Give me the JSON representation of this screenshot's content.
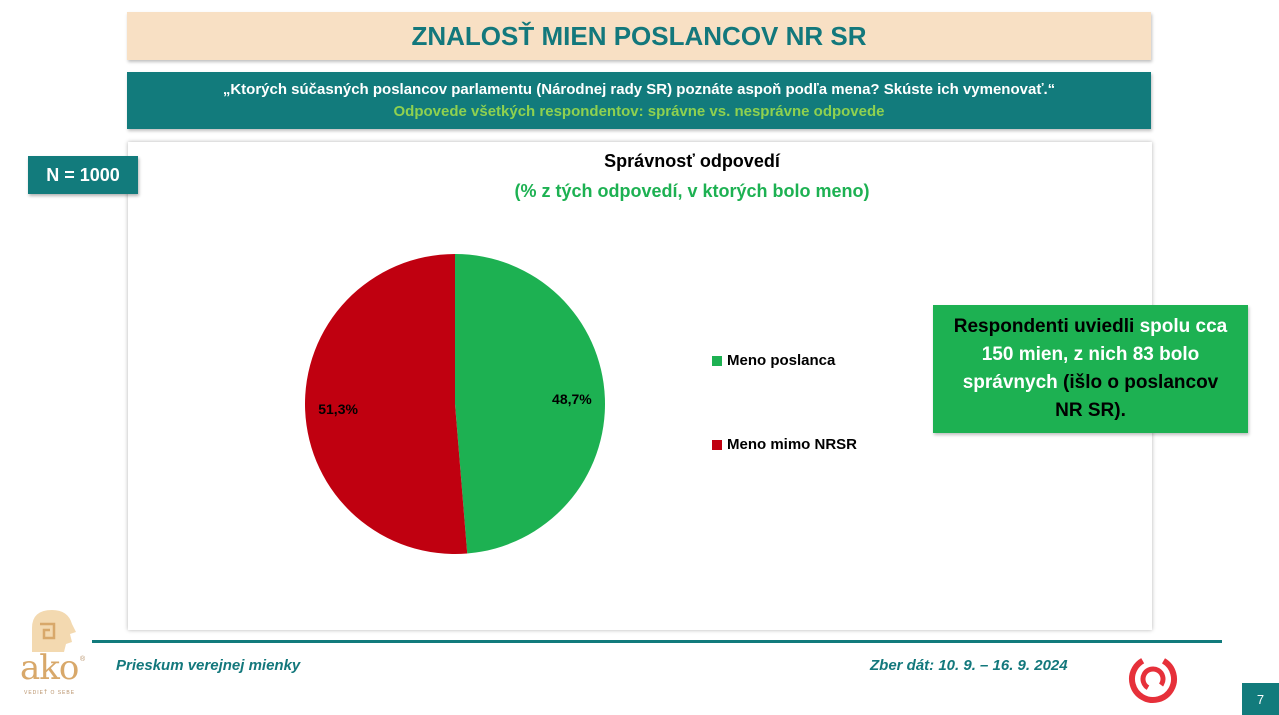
{
  "header": {
    "title": "ZNALOSŤ MIEN POSLANCOV NR SR",
    "question": "„Ktorých súčasných poslancov parlamentu (Národnej rady SR) poznáte aspoň podľa mena? Skúste ich vymenovať.“",
    "subtitle": "Odpovede všetkých respondentov: správne vs. nesprávne odpovede"
  },
  "sample": {
    "label": "N = 1000"
  },
  "chart_data": {
    "type": "pie",
    "title": "Správnosť odpovedí",
    "subtitle": "(% z tých odpovedí, v ktorých bolo meno)",
    "legend_position": "right",
    "slices": [
      {
        "label": "Meno poslanca",
        "value": 48.7,
        "display": "48,7%",
        "color": "#1db152"
      },
      {
        "label": "Meno mimo NRSR",
        "value": 51.3,
        "display": "51,3%",
        "color": "#c00010"
      }
    ]
  },
  "callout": {
    "part1": "Respondenti uviedli ",
    "part2": "spolu cca 150 mien, z nich 83 bolo",
    "part3": " správnych",
    "part4": " (išlo o poslancov NR SR)."
  },
  "footer": {
    "left": "Prieskum verejnej mienky",
    "right": "Zber dát: 10. 9. – 16. 9. 2024",
    "page": "7"
  },
  "logos": {
    "ako_text": "ako",
    "ako_tagline": "VEDIEŤ O SEBE",
    "ako_mark": "®"
  },
  "colors": {
    "teal": "#127b7c",
    "green": "#1db152",
    "red": "#c00010",
    "title_bg": "#f8e0c4"
  }
}
